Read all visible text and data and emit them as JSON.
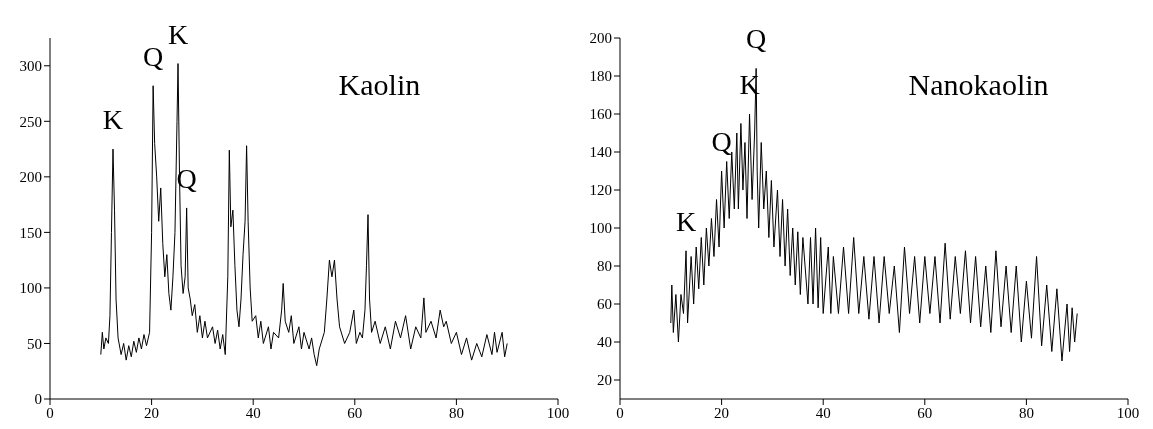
{
  "chart_data": [
    {
      "type": "line",
      "xlim": [
        0,
        100
      ],
      "xticks": [
        0,
        20,
        40,
        60,
        80,
        100
      ],
      "ylim": [
        0,
        325
      ],
      "yticks": [
        0,
        50,
        100,
        150,
        200,
        250,
        300
      ],
      "grid": false,
      "marker": "none",
      "line_style": "solid",
      "annotations": [
        {
          "text": "K",
          "x": 12.4,
          "y": 225
        },
        {
          "text": "Q",
          "x": 20.3,
          "y": 282
        },
        {
          "text": "K",
          "x": 25.2,
          "y": 302
        },
        {
          "text": "Q",
          "x": 26.9,
          "y": 172
        }
      ],
      "series": [
        {
          "name": "Kaolin",
          "color": "#000000",
          "x": [
            10,
            10.3,
            10.6,
            11,
            11.5,
            11.8,
            12.1,
            12.4,
            12.7,
            13,
            13.4,
            14,
            14.5,
            15,
            15.5,
            16,
            16.5,
            17,
            17.5,
            18,
            18.5,
            19,
            19.6,
            20,
            20.3,
            20.6,
            21,
            21.4,
            21.8,
            22.2,
            22.6,
            23,
            23.4,
            23.8,
            24.2,
            24.6,
            25,
            25.2,
            25.5,
            25.8,
            26.2,
            26.6,
            26.9,
            27.2,
            27.6,
            28,
            28.5,
            29,
            29.5,
            30,
            30.5,
            31,
            32,
            32.5,
            33,
            33.5,
            34,
            34.5,
            35,
            35.3,
            35.6,
            36,
            36.4,
            36.8,
            37.2,
            37.6,
            38,
            38.4,
            38.7,
            39,
            39.4,
            39.8,
            40.5,
            41,
            41.5,
            42,
            43,
            43.5,
            44,
            45,
            45.6,
            45.9,
            46.3,
            47,
            47.5,
            48,
            49,
            49.5,
            50,
            51,
            51.5,
            52,
            52.5,
            53,
            54,
            54.5,
            55,
            55.5,
            56,
            56.5,
            57,
            58,
            59,
            59.8,
            60.3,
            61,
            61.5,
            62,
            62.3,
            62.6,
            62.9,
            63.3,
            64,
            65,
            66,
            67,
            68,
            69,
            70,
            71,
            72,
            73,
            73.6,
            74,
            75,
            76,
            76.8,
            77.5,
            78,
            79,
            80,
            81,
            82,
            83,
            84,
            85,
            86,
            87,
            87.5,
            88,
            89,
            89.5,
            90
          ],
          "values": [
            40,
            60,
            45,
            55,
            50,
            75,
            150,
            225,
            170,
            90,
            55,
            40,
            50,
            35,
            48,
            38,
            52,
            42,
            55,
            45,
            58,
            48,
            60,
            150,
            282,
            230,
            200,
            160,
            190,
            140,
            110,
            130,
            95,
            80,
            110,
            150,
            250,
            302,
            200,
            120,
            95,
            110,
            172,
            100,
            90,
            75,
            85,
            60,
            75,
            55,
            70,
            55,
            65,
            50,
            62,
            45,
            58,
            40,
            110,
            224,
            155,
            170,
            120,
            80,
            65,
            90,
            130,
            160,
            228,
            160,
            100,
            70,
            75,
            55,
            70,
            50,
            65,
            45,
            60,
            55,
            80,
            104,
            70,
            60,
            75,
            50,
            65,
            45,
            60,
            45,
            55,
            40,
            30,
            45,
            60,
            90,
            125,
            110,
            125,
            90,
            65,
            50,
            60,
            80,
            50,
            60,
            55,
            80,
            120,
            166,
            90,
            60,
            70,
            50,
            65,
            45,
            70,
            55,
            75,
            45,
            65,
            55,
            91,
            60,
            70,
            55,
            80,
            65,
            70,
            50,
            60,
            40,
            55,
            35,
            50,
            38,
            58,
            40,
            60,
            42,
            60,
            38,
            50
          ]
        }
      ]
    },
    {
      "type": "line",
      "xlim": [
        0,
        100
      ],
      "xticks": [
        0,
        20,
        40,
        60,
        80,
        100
      ],
      "ylim": [
        10,
        200
      ],
      "yticks": [
        20,
        40,
        60,
        80,
        100,
        120,
        140,
        160,
        180,
        200
      ],
      "grid": false,
      "marker": "none",
      "line_style": "solid",
      "annotations": [
        {
          "text": "K",
          "x": 13,
          "y": 88
        },
        {
          "text": "Q",
          "x": 20,
          "y": 130
        },
        {
          "text": "K",
          "x": 25.5,
          "y": 160
        },
        {
          "text": "Q",
          "x": 26.8,
          "y": 184
        }
      ],
      "series": [
        {
          "name": "Nanokaolin",
          "color": "#000000",
          "x": [
            10,
            10.2,
            10.5,
            11,
            11.5,
            12,
            12.5,
            13,
            13.3,
            14,
            14.5,
            15,
            15.5,
            16,
            16.5,
            17,
            17.5,
            18,
            18.5,
            19,
            19.5,
            20,
            20.5,
            21,
            21.5,
            22,
            22.5,
            23,
            23.3,
            23.8,
            24.2,
            24.6,
            25,
            25.5,
            26,
            26.5,
            26.8,
            27,
            27.3,
            27.8,
            28.3,
            28.8,
            29.3,
            29.8,
            30.3,
            31,
            31.5,
            32,
            32.5,
            33,
            33.5,
            34,
            34.5,
            35,
            35.5,
            36,
            37,
            37.5,
            38,
            38.5,
            39,
            39.5,
            40,
            41,
            41.5,
            42,
            43,
            44,
            45,
            46,
            47,
            48,
            49,
            50,
            51,
            52,
            53,
            54,
            55,
            56,
            57,
            58,
            59,
            60,
            61,
            62,
            63,
            64,
            65,
            66,
            67,
            68,
            69,
            70,
            71,
            72,
            73,
            74,
            75,
            76,
            77,
            78,
            79,
            80,
            81,
            82,
            83,
            84,
            85,
            86,
            87,
            88,
            88.5,
            89,
            89.5,
            90
          ],
          "values": [
            50,
            70,
            45,
            65,
            40,
            65,
            55,
            88,
            50,
            85,
            60,
            90,
            68,
            95,
            70,
            100,
            80,
            105,
            85,
            115,
            90,
            130,
            100,
            135,
            105,
            140,
            110,
            150,
            110,
            155,
            120,
            145,
            105,
            160,
            115,
            150,
            184,
            130,
            100,
            145,
            110,
            130,
            95,
            125,
            90,
            120,
            85,
            115,
            80,
            110,
            75,
            100,
            70,
            98,
            65,
            95,
            60,
            95,
            60,
            100,
            58,
            95,
            55,
            90,
            55,
            85,
            55,
            90,
            55,
            95,
            55,
            85,
            52,
            85,
            50,
            85,
            55,
            80,
            45,
            90,
            55,
            85,
            50,
            85,
            55,
            85,
            50,
            92,
            52,
            85,
            55,
            88,
            50,
            85,
            48,
            80,
            45,
            88,
            48,
            80,
            45,
            80,
            40,
            72,
            42,
            85,
            38,
            70,
            35,
            68,
            30,
            60,
            35,
            58,
            40,
            55
          ]
        }
      ]
    }
  ]
}
